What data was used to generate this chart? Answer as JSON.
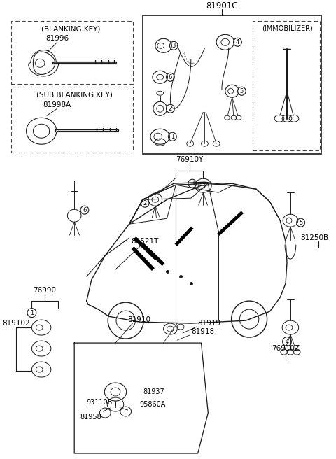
{
  "bg_color": "#ffffff",
  "lc": "#1a1a1a",
  "dc": "#444444",
  "part_numbers": {
    "main_title": "81901C",
    "blanking_key_label": "(BLANKING KEY)",
    "blanking_key_num": "81996",
    "sub_blanking_key_label": "(SUB BLANKING KEY)",
    "sub_blanking_key_num": "81998A",
    "immobilizer": "(IMMOBILIZER)",
    "p76910Y": "76910Y",
    "p81521T": "81521T",
    "p81250B": "81250B",
    "p76990": "76990",
    "p819102": "819102",
    "p81910": "81910",
    "p81919": "81919",
    "p81918": "81918",
    "p93110B": "93110B",
    "p81937": "81937",
    "p95860A": "95860A",
    "p81958": "81958",
    "p76910Z": "76910Z"
  }
}
